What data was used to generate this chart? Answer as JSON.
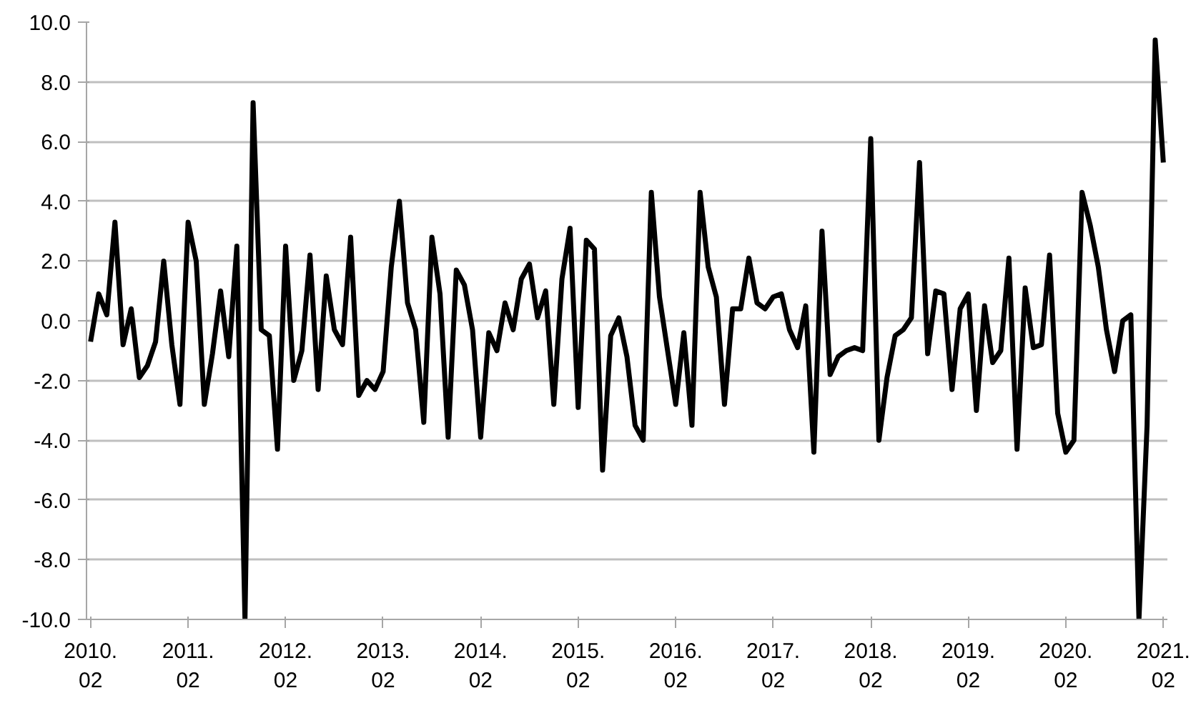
{
  "chart_data": {
    "type": "line",
    "categories": [
      "2010.\n02",
      null,
      null,
      null,
      null,
      null,
      null,
      null,
      null,
      null,
      null,
      null,
      "2011.\n02",
      null,
      null,
      null,
      null,
      null,
      null,
      null,
      null,
      null,
      null,
      null,
      "2012.\n02",
      null,
      null,
      null,
      null,
      null,
      null,
      null,
      null,
      null,
      null,
      null,
      "2013.\n02",
      null,
      null,
      null,
      null,
      null,
      null,
      null,
      null,
      null,
      null,
      null,
      "2014.\n02",
      null,
      null,
      null,
      null,
      null,
      null,
      null,
      null,
      null,
      null,
      null,
      "2015.\n02",
      null,
      null,
      null,
      null,
      null,
      null,
      null,
      null,
      null,
      null,
      null,
      "2016.\n02",
      null,
      null,
      null,
      null,
      null,
      null,
      null,
      null,
      null,
      null,
      null,
      "2017.\n02",
      null,
      null,
      null,
      null,
      null,
      null,
      null,
      null,
      null,
      null,
      null,
      "2018.\n02",
      null,
      null,
      null,
      null,
      null,
      null,
      null,
      null,
      null,
      null,
      null,
      "2019.\n02",
      null,
      null,
      null,
      null,
      null,
      null,
      null,
      null,
      null,
      null,
      null,
      "2020.\n02",
      null,
      null,
      null,
      null,
      null,
      null,
      null,
      null,
      null,
      null,
      null,
      "2021.\n02"
    ],
    "series": [
      {
        "color": "#000000",
        "values": [
          -0.7,
          0.9,
          0.2,
          3.3,
          -0.8,
          0.4,
          -1.9,
          -1.5,
          -0.7,
          2.0,
          -0.8,
          -2.8,
          3.3,
          2.0,
          -2.8,
          -1.1,
          1.0,
          -1.2,
          2.5,
          -10.0,
          7.3,
          -0.3,
          -0.5,
          -4.3,
          2.5,
          -2.0,
          -1.0,
          2.2,
          -2.3,
          1.5,
          -0.3,
          -0.8,
          2.8,
          -2.5,
          -2.0,
          -2.3,
          -1.7,
          1.8,
          4.0,
          0.6,
          -0.3,
          -3.4,
          2.8,
          0.9,
          -3.9,
          1.7,
          1.2,
          -0.3,
          -3.9,
          -0.4,
          -1.0,
          0.6,
          -0.3,
          1.4,
          1.9,
          0.1,
          1.0,
          -2.8,
          1.4,
          3.1,
          -2.9,
          2.7,
          2.4,
          -5.0,
          -0.5,
          0.1,
          -1.2,
          -3.5,
          -4.0,
          4.3,
          0.8,
          -1.0,
          -2.8,
          -0.4,
          -3.5,
          4.3,
          1.8,
          0.8,
          -2.8,
          0.4,
          0.4,
          2.1,
          0.6,
          0.4,
          0.8,
          0.9,
          -0.3,
          -0.9,
          0.5,
          -4.4,
          3.0,
          -1.8,
          -1.2,
          -1.0,
          -0.9,
          -1.0,
          6.1,
          -4.0,
          -1.9,
          -0.5,
          -0.3,
          0.1,
          5.3,
          -1.1,
          1.0,
          0.9,
          -2.3,
          0.4,
          0.9,
          -3.0,
          0.5,
          -1.4,
          -1.0,
          2.1,
          -4.3,
          1.1,
          -0.9,
          -0.8,
          2.2,
          -3.1,
          -4.4,
          -4.0,
          4.3,
          3.2,
          1.8,
          -0.3,
          -1.7,
          0.0,
          0.2,
          -10.0,
          -3.5,
          9.4,
          5.3
        ]
      }
    ],
    "ylim": [
      -10,
      10
    ],
    "yticks": [
      {
        "value": -10,
        "label": "-10.0"
      },
      {
        "value": -8,
        "label": "-8.0"
      },
      {
        "value": -6,
        "label": "-6.0"
      },
      {
        "value": -4,
        "label": "-4.0"
      },
      {
        "value": -2,
        "label": "-2.0"
      },
      {
        "value": 0,
        "label": "0.0"
      },
      {
        "value": 2,
        "label": "2.0"
      },
      {
        "value": 4,
        "label": "4.0"
      },
      {
        "value": 6,
        "label": "6.0"
      },
      {
        "value": 8,
        "label": "8.0"
      },
      {
        "value": 10,
        "label": "10.0"
      }
    ],
    "grid": "y"
  }
}
